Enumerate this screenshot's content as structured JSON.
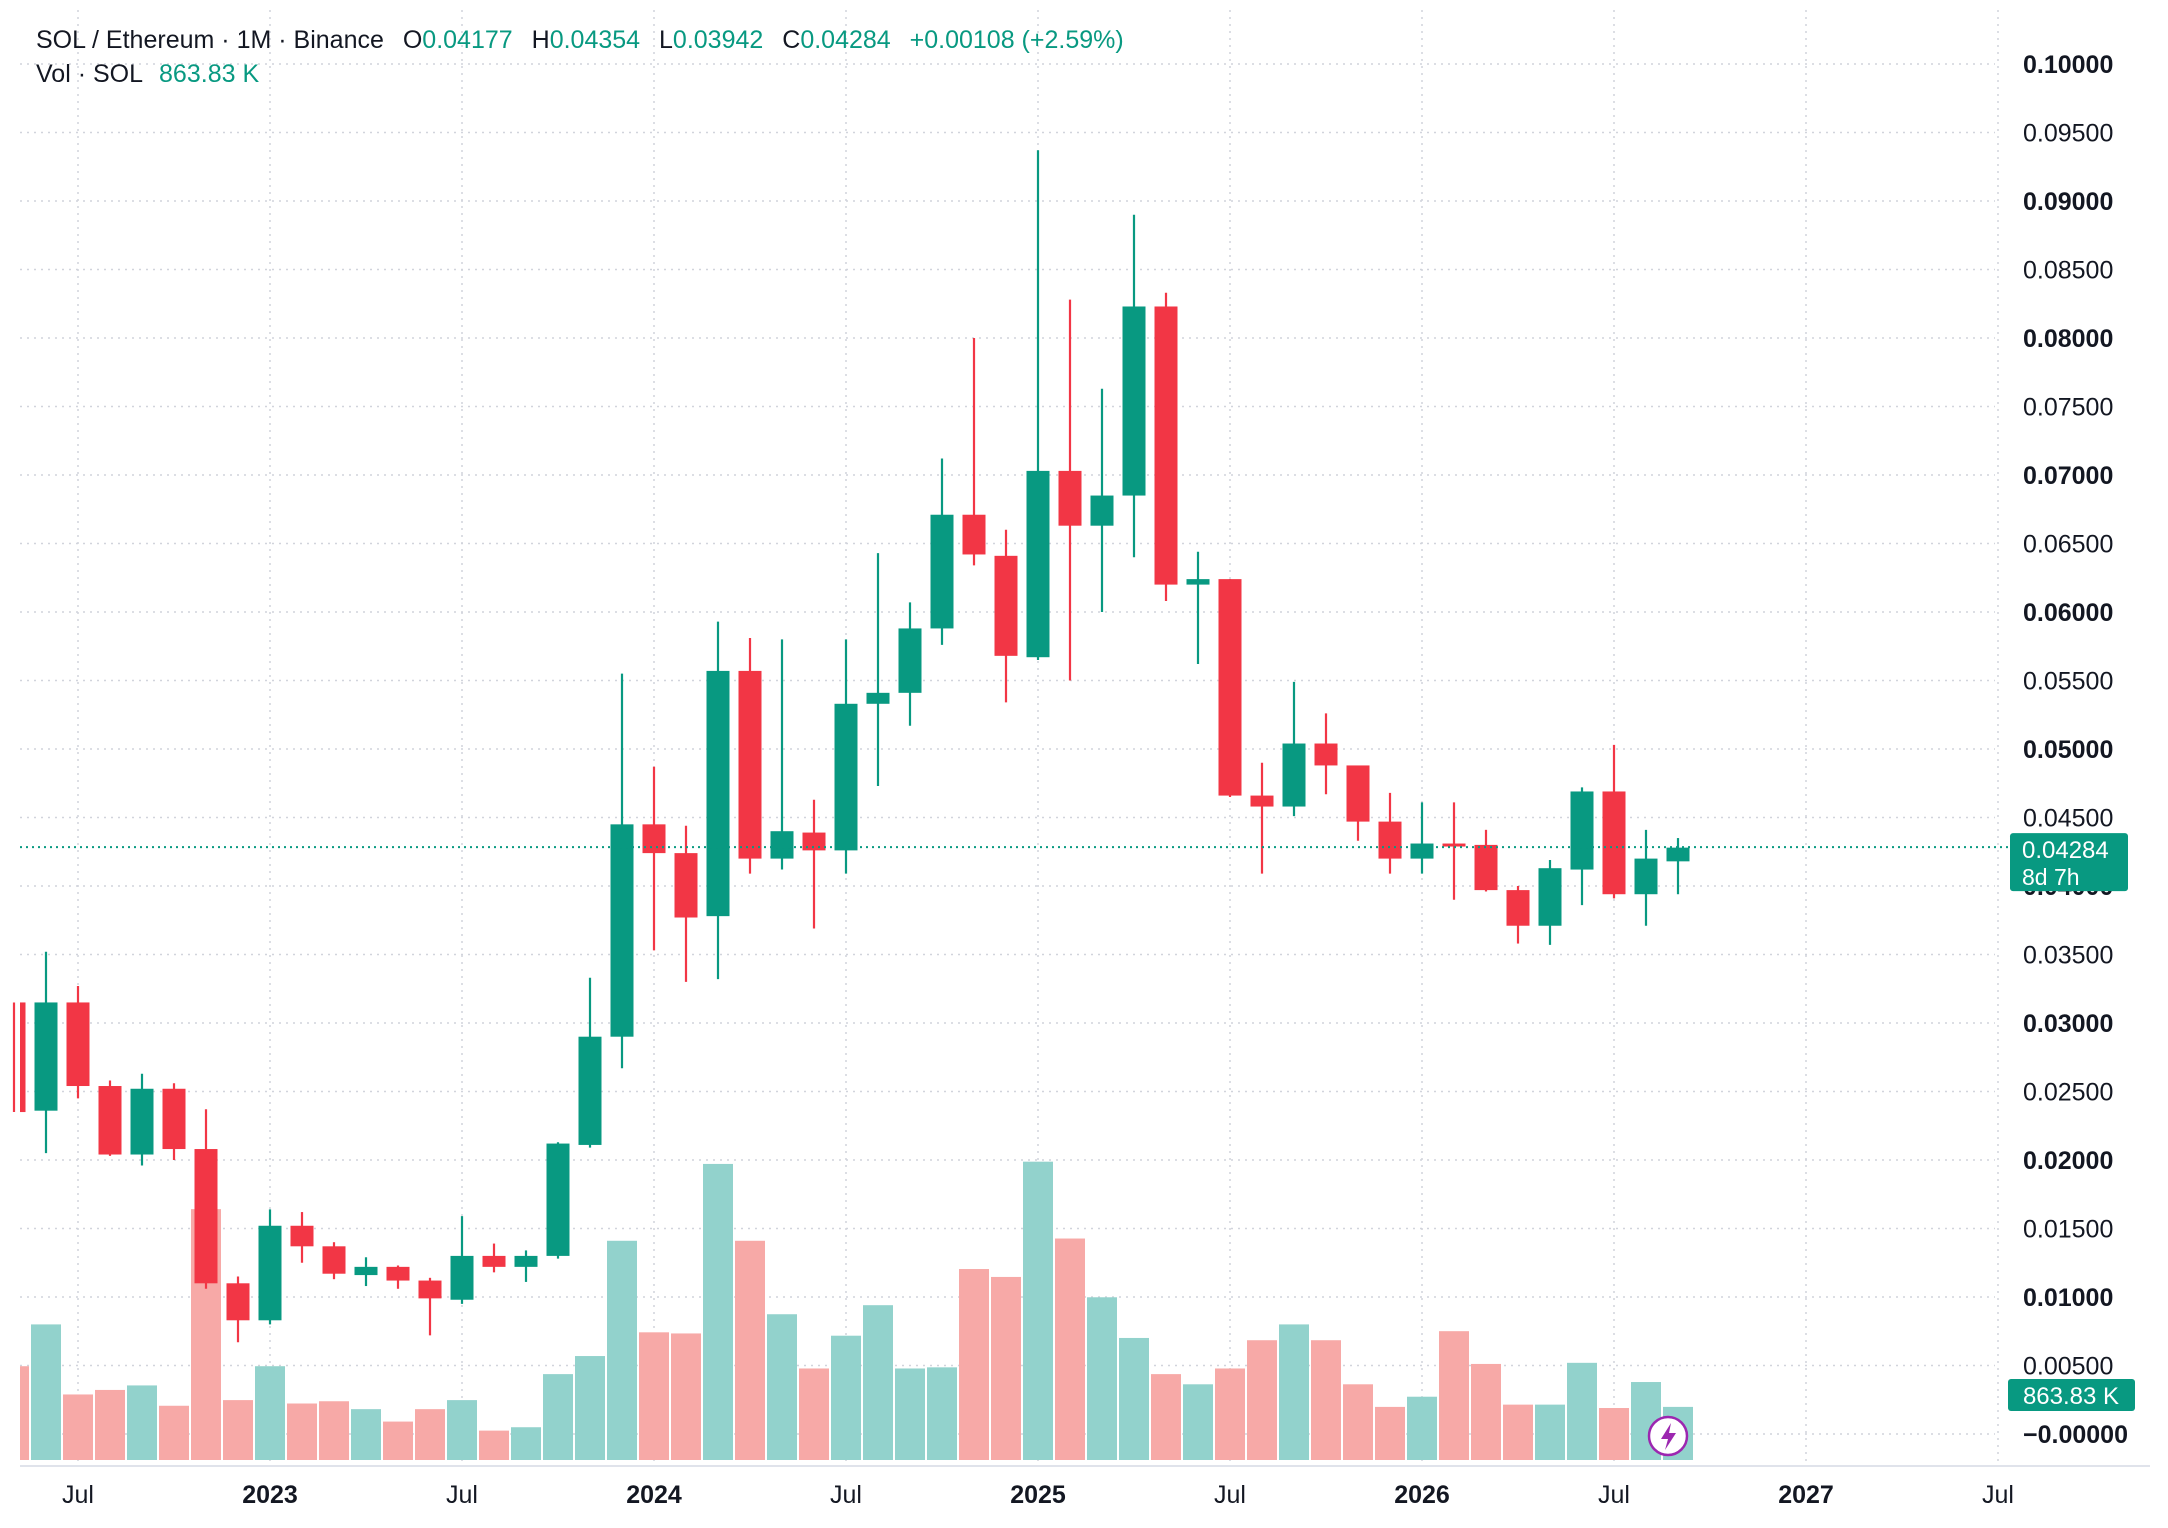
{
  "header": {
    "symbol": "SOL / Ethereum",
    "interval": "1M",
    "exchange": "Binance",
    "ohlc": {
      "open_label": "O",
      "open": "0.04177",
      "high_label": "H",
      "high": "0.04354",
      "low_label": "L",
      "low": "0.03942",
      "close_label": "C",
      "close": "0.04284",
      "change": "+0.00108 (+2.59%)"
    },
    "volume_label": "Vol · SOL",
    "volume_value": "863.83 K"
  },
  "price_badge": {
    "price": "0.04284",
    "countdown": "8d 7h"
  },
  "volume_badge": "863.83 K",
  "colors": {
    "up": "#089981",
    "down": "#F23645",
    "up_volume": "#92D2CC",
    "down_volume": "#F7A9A7",
    "grid": "#D1D4DC"
  },
  "icons": {
    "lightning": "lightning-bolt-icon"
  },
  "chart_data": {
    "type": "candlestick",
    "interval": "monthly",
    "y_axis": {
      "ticks": [
        "0.10000",
        "0.09500",
        "0.09000",
        "0.08500",
        "0.08000",
        "0.07500",
        "0.07000",
        "0.06500",
        "0.06000",
        "0.05500",
        "0.05000",
        "0.04500",
        "0.04000",
        "0.03500",
        "0.03000",
        "0.02500",
        "0.02000",
        "0.01500",
        "0.01000",
        "0.00500",
        "−0.00000"
      ],
      "bold_ticks": [
        "0.10000",
        "0.09000",
        "0.08000",
        "0.07000",
        "0.06000",
        "0.05000",
        "0.04000",
        "0.03000",
        "0.02000",
        "0.01000",
        "−0.00000"
      ],
      "range": [
        0,
        0.1
      ]
    },
    "x_axis": {
      "labels": [
        {
          "month": "2022-07",
          "text": "Jul",
          "bold": false
        },
        {
          "month": "2023-01",
          "text": "2023",
          "bold": true
        },
        {
          "month": "2023-07",
          "text": "Jul",
          "bold": false
        },
        {
          "month": "2024-01",
          "text": "2024",
          "bold": true
        },
        {
          "month": "2024-07",
          "text": "Jul",
          "bold": false
        },
        {
          "month": "2025-01",
          "text": "2025",
          "bold": true
        },
        {
          "month": "2025-07",
          "text": "Jul",
          "bold": false
        },
        {
          "month": "2026-01",
          "text": "2026",
          "bold": true
        },
        {
          "month": "2026-07",
          "text": "Jul",
          "bold": false
        },
        {
          "month": "2027-01",
          "text": "2027",
          "bold": true
        },
        {
          "month": "2027-07",
          "text": "Jul",
          "bold": false
        }
      ]
    },
    "candles": [
      {
        "month": "2022-05",
        "o": 0.0315,
        "h": 0.0315,
        "l": 0.0235,
        "c": 0.0235,
        "vol": 0.0083
      },
      {
        "month": "2022-06",
        "o": 0.0236,
        "h": 0.0352,
        "l": 0.0205,
        "c": 0.0315,
        "vol": 0.012
      },
      {
        "month": "2022-07",
        "o": 0.0315,
        "h": 0.0327,
        "l": 0.0245,
        "c": 0.0254,
        "vol": 0.0058
      },
      {
        "month": "2022-08",
        "o": 0.0254,
        "h": 0.0258,
        "l": 0.0203,
        "c": 0.0204,
        "vol": 0.0062
      },
      {
        "month": "2022-09",
        "o": 0.0204,
        "h": 0.0263,
        "l": 0.0196,
        "c": 0.0252,
        "vol": 0.0066
      },
      {
        "month": "2022-10",
        "o": 0.0252,
        "h": 0.0256,
        "l": 0.02,
        "c": 0.0208,
        "vol": 0.0048
      },
      {
        "month": "2022-11",
        "o": 0.0208,
        "h": 0.0237,
        "l": 0.0106,
        "c": 0.011,
        "vol": 0.0222
      },
      {
        "month": "2022-12",
        "o": 0.011,
        "h": 0.0115,
        "l": 0.0067,
        "c": 0.0083,
        "vol": 0.0053
      },
      {
        "month": "2023-01",
        "o": 0.0083,
        "h": 0.0164,
        "l": 0.008,
        "c": 0.0152,
        "vol": 0.0083
      },
      {
        "month": "2023-02",
        "o": 0.0152,
        "h": 0.0162,
        "l": 0.0125,
        "c": 0.0137,
        "vol": 0.005
      },
      {
        "month": "2023-03",
        "o": 0.0137,
        "h": 0.014,
        "l": 0.0113,
        "c": 0.0117,
        "vol": 0.0052
      },
      {
        "month": "2023-04",
        "o": 0.0116,
        "h": 0.0129,
        "l": 0.0108,
        "c": 0.0122,
        "vol": 0.0045
      },
      {
        "month": "2023-05",
        "o": 0.0122,
        "h": 0.0123,
        "l": 0.0106,
        "c": 0.0112,
        "vol": 0.0034
      },
      {
        "month": "2023-06",
        "o": 0.0112,
        "h": 0.0114,
        "l": 0.0072,
        "c": 0.0099,
        "vol": 0.0045
      },
      {
        "month": "2023-07",
        "o": 0.0098,
        "h": 0.0159,
        "l": 0.0095,
        "c": 0.013,
        "vol": 0.0053
      },
      {
        "month": "2023-08",
        "o": 0.013,
        "h": 0.0139,
        "l": 0.0118,
        "c": 0.0122,
        "vol": 0.0026
      },
      {
        "month": "2023-09",
        "o": 0.0122,
        "h": 0.0134,
        "l": 0.0111,
        "c": 0.013,
        "vol": 0.0029
      },
      {
        "month": "2023-10",
        "o": 0.013,
        "h": 0.0213,
        "l": 0.0128,
        "c": 0.0212,
        "vol": 0.0076
      },
      {
        "month": "2023-11",
        "o": 0.0211,
        "h": 0.0333,
        "l": 0.0209,
        "c": 0.029,
        "vol": 0.0092
      },
      {
        "month": "2023-12",
        "o": 0.029,
        "h": 0.0555,
        "l": 0.0267,
        "c": 0.0445,
        "vol": 0.0194
      },
      {
        "month": "2024-01",
        "o": 0.0445,
        "h": 0.0487,
        "l": 0.0353,
        "c": 0.0424,
        "vol": 0.0113
      },
      {
        "month": "2024-02",
        "o": 0.0424,
        "h": 0.0444,
        "l": 0.033,
        "c": 0.0377,
        "vol": 0.0112
      },
      {
        "month": "2024-03",
        "o": 0.0378,
        "h": 0.0593,
        "l": 0.0332,
        "c": 0.0557,
        "vol": 0.0262
      },
      {
        "month": "2024-04",
        "o": 0.0557,
        "h": 0.0581,
        "l": 0.0409,
        "c": 0.042,
        "vol": 0.0194
      },
      {
        "month": "2024-05",
        "o": 0.042,
        "h": 0.058,
        "l": 0.0412,
        "c": 0.044,
        "vol": 0.0129
      },
      {
        "month": "2024-06",
        "o": 0.0439,
        "h": 0.0463,
        "l": 0.0369,
        "c": 0.0426,
        "vol": 0.0081
      },
      {
        "month": "2024-07",
        "o": 0.0426,
        "h": 0.058,
        "l": 0.0409,
        "c": 0.0533,
        "vol": 0.011
      },
      {
        "month": "2024-08",
        "o": 0.0533,
        "h": 0.0643,
        "l": 0.0473,
        "c": 0.0541,
        "vol": 0.0137
      },
      {
        "month": "2024-09",
        "o": 0.0541,
        "h": 0.0607,
        "l": 0.0517,
        "c": 0.0588,
        "vol": 0.0081
      },
      {
        "month": "2024-10",
        "o": 0.0588,
        "h": 0.0712,
        "l": 0.0576,
        "c": 0.0671,
        "vol": 0.0082
      },
      {
        "month": "2024-11",
        "o": 0.0671,
        "h": 0.08,
        "l": 0.0634,
        "c": 0.0642,
        "vol": 0.0169
      },
      {
        "month": "2024-12",
        "o": 0.0641,
        "h": 0.066,
        "l": 0.0534,
        "c": 0.0568,
        "vol": 0.0162
      },
      {
        "month": "2025-01",
        "o": 0.0567,
        "h": 0.0937,
        "l": 0.0565,
        "c": 0.0703,
        "vol": 0.0264
      },
      {
        "month": "2025-02",
        "o": 0.0703,
        "h": 0.0828,
        "l": 0.055,
        "c": 0.0663,
        "vol": 0.0196
      },
      {
        "month": "2025-03",
        "o": 0.0663,
        "h": 0.0763,
        "l": 0.06,
        "c": 0.0685,
        "vol": 0.0144
      },
      {
        "month": "2025-04",
        "o": 0.0685,
        "h": 0.089,
        "l": 0.064,
        "c": 0.0823,
        "vol": 0.0108
      },
      {
        "month": "2025-05",
        "o": 0.0823,
        "h": 0.0833,
        "l": 0.0608,
        "c": 0.062,
        "vol": 0.0076
      },
      {
        "month": "2025-06",
        "o": 0.062,
        "h": 0.0644,
        "l": 0.0562,
        "c": 0.0624,
        "vol": 0.0067
      },
      {
        "month": "2025-07",
        "o": 0.0624,
        "h": 0.0624,
        "l": 0.0465,
        "c": 0.0466,
        "vol": 0.0081
      },
      {
        "month": "2025-08",
        "o": 0.0466,
        "h": 0.049,
        "l": 0.0409,
        "c": 0.0458,
        "vol": 0.0106
      },
      {
        "month": "2025-09",
        "o": 0.0458,
        "h": 0.0549,
        "l": 0.0451,
        "c": 0.0504,
        "vol": 0.012
      },
      {
        "month": "2025-10",
        "o": 0.0504,
        "h": 0.0526,
        "l": 0.0467,
        "c": 0.0488,
        "vol": 0.0106
      },
      {
        "month": "2025-11",
        "o": 0.0488,
        "h": 0.0488,
        "l": 0.0433,
        "c": 0.0447,
        "vol": 0.0067
      },
      {
        "month": "2025-12",
        "o": 0.0447,
        "h": 0.0468,
        "l": 0.0409,
        "c": 0.042,
        "vol": 0.0047
      },
      {
        "month": "2026-01",
        "o": 0.042,
        "h": 0.0461,
        "l": 0.0409,
        "c": 0.0431,
        "vol": 0.0056
      },
      {
        "month": "2026-02",
        "o": 0.0431,
        "h": 0.0461,
        "l": 0.039,
        "c": 0.043,
        "vol": 0.0114
      },
      {
        "month": "2026-03",
        "o": 0.043,
        "h": 0.0441,
        "l": 0.0396,
        "c": 0.0397,
        "vol": 0.0085
      },
      {
        "month": "2026-04",
        "o": 0.0397,
        "h": 0.04,
        "l": 0.0358,
        "c": 0.0371,
        "vol": 0.0049
      },
      {
        "month": "2026-05",
        "o": 0.0371,
        "h": 0.0419,
        "l": 0.0357,
        "c": 0.0413,
        "vol": 0.0049
      },
      {
        "month": "2026-06",
        "o": 0.0412,
        "h": 0.0472,
        "l": 0.0386,
        "c": 0.0469,
        "vol": 0.0086
      },
      {
        "month": "2026-07",
        "o": 0.0469,
        "h": 0.0503,
        "l": 0.0391,
        "c": 0.0394,
        "vol": 0.0046
      },
      {
        "month": "2026-08",
        "o": 0.0394,
        "h": 0.0441,
        "l": 0.0371,
        "c": 0.042,
        "vol": 0.0069
      },
      {
        "month": "2026-09",
        "o": 0.0418,
        "h": 0.0435,
        "l": 0.0394,
        "c": 0.0428,
        "vol": 0.0047
      }
    ],
    "last_price": 0.04284
  }
}
